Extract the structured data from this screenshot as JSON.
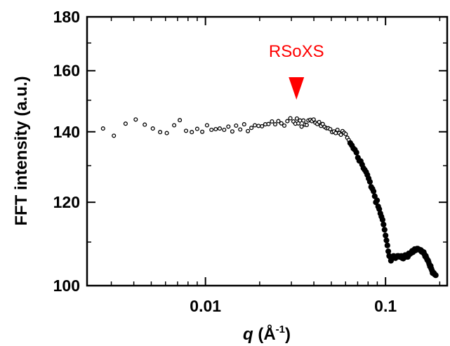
{
  "chart_data": {
    "type": "scatter",
    "title": "",
    "xlabel": "q (Å⁻¹)",
    "xlabel_parts": {
      "symbol": "q",
      "unit_open": " (Å",
      "unit_exp": "-1",
      "unit_close": ")"
    },
    "ylabel": "FFT intensity (a.u.)",
    "x_scale": "log",
    "y_scale": "log",
    "xlim": [
      0.0022,
      0.22
    ],
    "ylim": [
      100,
      180
    ],
    "x_ticks": [
      {
        "value": 0.01,
        "label": "0.01"
      },
      {
        "value": 0.1,
        "label": "0.1"
      }
    ],
    "y_ticks": [
      {
        "value": 100,
        "label": "100"
      },
      {
        "value": 120,
        "label": "120"
      },
      {
        "value": 140,
        "label": "140"
      },
      {
        "value": 160,
        "label": "160"
      },
      {
        "value": 180,
        "label": "180"
      }
    ],
    "grid": false,
    "legend": "none",
    "marker_color": "#000000",
    "annotation": {
      "text": "RSoXS",
      "x": 0.032,
      "color": "#ff0000"
    },
    "series": [
      {
        "marker": "open-circle",
        "x": [
          0.0027,
          0.0031,
          0.0036,
          0.0041,
          0.0046,
          0.0051,
          0.0056,
          0.0061,
          0.0067,
          0.0072,
          0.0078,
          0.0084,
          0.009,
          0.0096,
          0.0102,
          0.0108,
          0.0114,
          0.012,
          0.0127,
          0.0134,
          0.0141,
          0.0148,
          0.0156,
          0.0164,
          0.0172,
          0.018,
          0.0188,
          0.0197,
          0.0206,
          0.0215,
          0.0224,
          0.0234,
          0.0244,
          0.0254,
          0.0264,
          0.0274,
          0.0285,
          0.0296,
          0.0308,
          0.0316,
          0.0322,
          0.0328,
          0.0335,
          0.0342,
          0.035,
          0.0357,
          0.0365,
          0.0373,
          0.0382,
          0.039,
          0.0399,
          0.0408,
          0.0418,
          0.0428,
          0.0438,
          0.0448,
          0.0459,
          0.047,
          0.0481,
          0.0493,
          0.0505,
          0.0517,
          0.0529,
          0.0541,
          0.0553,
          0.0565,
          0.0577,
          0.0589,
          0.0601,
          0.0613,
          0.0625
        ],
        "y": [
          141.0,
          138.8,
          142.5,
          143.8,
          142.2,
          141.0,
          139.9,
          139.6,
          142.0,
          143.6,
          140.3,
          139.9,
          140.9,
          140.0,
          142.0,
          140.6,
          140.8,
          141.0,
          140.6,
          141.6,
          140.1,
          141.9,
          140.7,
          142.3,
          140.2,
          141.2,
          142.0,
          141.8,
          141.7,
          142.3,
          142.4,
          143.2,
          142.3,
          143.3,
          142.6,
          141.9,
          143.3,
          144.2,
          143.2,
          142.5,
          144.1,
          142.6,
          143.5,
          141.6,
          143.5,
          142.2,
          142.1,
          143.5,
          143.7,
          143.3,
          143.8,
          142.8,
          142.4,
          143.0,
          141.8,
          142.4,
          141.5,
          141.1,
          141.1,
          140.8,
          139.9,
          140.1,
          139.6,
          140.6,
          139.6,
          139.1,
          140.2,
          139.7,
          139.3,
          138.2,
          137.5
        ]
      },
      {
        "marker": "filled-circle",
        "x": [
          0.0637,
          0.065,
          0.0663,
          0.0676,
          0.0689,
          0.0702,
          0.0715,
          0.0728,
          0.0741,
          0.0754,
          0.0767,
          0.078,
          0.0793,
          0.0806,
          0.0819,
          0.0832,
          0.0845,
          0.0858,
          0.0871,
          0.0884,
          0.0897,
          0.091,
          0.0923,
          0.0936,
          0.0949,
          0.0962,
          0.0975,
          0.0988,
          0.1,
          0.1012,
          0.1024,
          0.1036,
          0.1048,
          0.106,
          0.1072,
          0.1084,
          0.1096,
          0.1108,
          0.112,
          0.1135,
          0.115,
          0.1165,
          0.118,
          0.1195,
          0.121,
          0.1225,
          0.124,
          0.1255,
          0.127,
          0.1285,
          0.13,
          0.1315,
          0.133,
          0.1345,
          0.136,
          0.1375,
          0.139,
          0.1405,
          0.142,
          0.1435,
          0.145,
          0.1465,
          0.148,
          0.1495,
          0.151,
          0.1525,
          0.154,
          0.1555,
          0.157,
          0.1585,
          0.16,
          0.1615,
          0.163,
          0.1645,
          0.166,
          0.1675,
          0.169,
          0.1705,
          0.172,
          0.1735,
          0.175,
          0.1765,
          0.178,
          0.1795,
          0.181,
          0.1825,
          0.184,
          0.1855,
          0.187,
          0.1885,
          0.19
        ],
        "y": [
          136.6,
          135.9,
          135.0,
          134.6,
          133.8,
          132.3,
          131.4,
          131.3,
          130.3,
          129.3,
          128.8,
          128.2,
          127.4,
          126.4,
          125.5,
          124.1,
          123.6,
          122.9,
          121.6,
          120.0,
          120.5,
          118.9,
          118.2,
          117.1,
          116.3,
          115.5,
          114.3,
          113.0,
          111.6,
          110.4,
          109.2,
          107.8,
          106.7,
          106.5,
          105.6,
          106.5,
          106.3,
          106.7,
          106.5,
          106.2,
          106.6,
          106.7,
          106.7,
          106.5,
          106.6,
          106.7,
          106.2,
          106.1,
          106.7,
          106.9,
          106.5,
          106.8,
          106.5,
          107.3,
          107.1,
          107.3,
          107.4,
          107.9,
          107.6,
          107.9,
          108.3,
          108.0,
          108.2,
          108.4,
          108.4,
          108.2,
          108.2,
          108.1,
          108.1,
          107.7,
          107.8,
          107.5,
          107.6,
          107.1,
          106.6,
          106.7,
          106.2,
          105.8,
          105.7,
          105.3,
          104.8,
          104.3,
          104.4,
          103.8,
          103.4,
          102.8,
          102.9,
          102.8,
          102.5,
          102.4,
          102.3
        ]
      }
    ]
  }
}
